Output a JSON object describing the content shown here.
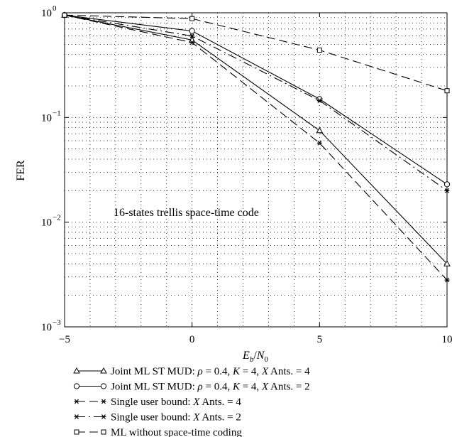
{
  "chart_data": {
    "type": "line",
    "x_axis": {
      "label_main": "E",
      "label_sub1": "b",
      "label_mid": "/",
      "label_main2": "N",
      "label_sub2": "0",
      "range": [
        -5,
        10
      ],
      "ticks": [
        -5,
        0,
        5,
        10
      ],
      "tick_labels": [
        "−5",
        "0",
        "5",
        "10"
      ]
    },
    "y_axis": {
      "label": "FER",
      "scale": "log",
      "range": [
        0.001,
        1
      ],
      "ticks": [
        {
          "value": 1,
          "base": "10",
          "exp": "0"
        },
        {
          "value": 0.1,
          "base": "10",
          "exp": "−1"
        },
        {
          "value": 0.01,
          "base": "10",
          "exp": "−2"
        },
        {
          "value": 0.001,
          "base": "10",
          "exp": "−3"
        }
      ]
    },
    "grid": "dotted, major and minor",
    "annotation": "16-states trellis space-time code",
    "series": [
      {
        "key": "joint4",
        "legend_parts": [
          {
            "t": "Joint ML ST MUD: "
          },
          {
            "t": "ρ",
            "i": true
          },
          {
            "t": " = 0.4, "
          },
          {
            "t": "K",
            "i": true
          },
          {
            "t": " = 4, "
          },
          {
            "t": "X",
            "i": true
          },
          {
            "t": " Ants. = 4"
          }
        ],
        "line": "solid",
        "marker": "triangle",
        "x": [
          -5,
          0,
          5,
          10
        ],
        "y": [
          0.95,
          0.55,
          0.075,
          0.004
        ]
      },
      {
        "key": "joint2",
        "legend_parts": [
          {
            "t": "Joint ML ST MUD: "
          },
          {
            "t": "ρ",
            "i": true
          },
          {
            "t": " = 0.4, "
          },
          {
            "t": "K",
            "i": true
          },
          {
            "t": " = 4, "
          },
          {
            "t": "X",
            "i": true
          },
          {
            "t": " Ants. = 2"
          }
        ],
        "line": "solid",
        "marker": "circle",
        "x": [
          -5,
          0,
          5,
          10
        ],
        "y": [
          0.95,
          0.67,
          0.15,
          0.023
        ]
      },
      {
        "key": "single4",
        "legend_parts": [
          {
            "t": "Single user bound: "
          },
          {
            "t": "X",
            "i": true
          },
          {
            "t": " Ants. = 4"
          }
        ],
        "line": "dashed",
        "marker": "asterisk",
        "x": [
          -5,
          0,
          5,
          10
        ],
        "y": [
          0.95,
          0.52,
          0.057,
          0.0028
        ]
      },
      {
        "key": "single2",
        "legend_parts": [
          {
            "t": "Single user bound: "
          },
          {
            "t": "X",
            "i": true
          },
          {
            "t": " Ants. = 2"
          }
        ],
        "line": "dashdot",
        "marker": "asterisk",
        "x": [
          -5,
          0,
          5,
          10
        ],
        "y": [
          0.95,
          0.6,
          0.145,
          0.02
        ]
      },
      {
        "key": "noST",
        "legend_parts": [
          {
            "t": "ML without space-time coding"
          }
        ],
        "line": "dashed",
        "marker": "square",
        "x": [
          -5,
          0,
          5,
          10
        ],
        "y": [
          0.95,
          0.88,
          0.44,
          0.18
        ]
      }
    ]
  }
}
